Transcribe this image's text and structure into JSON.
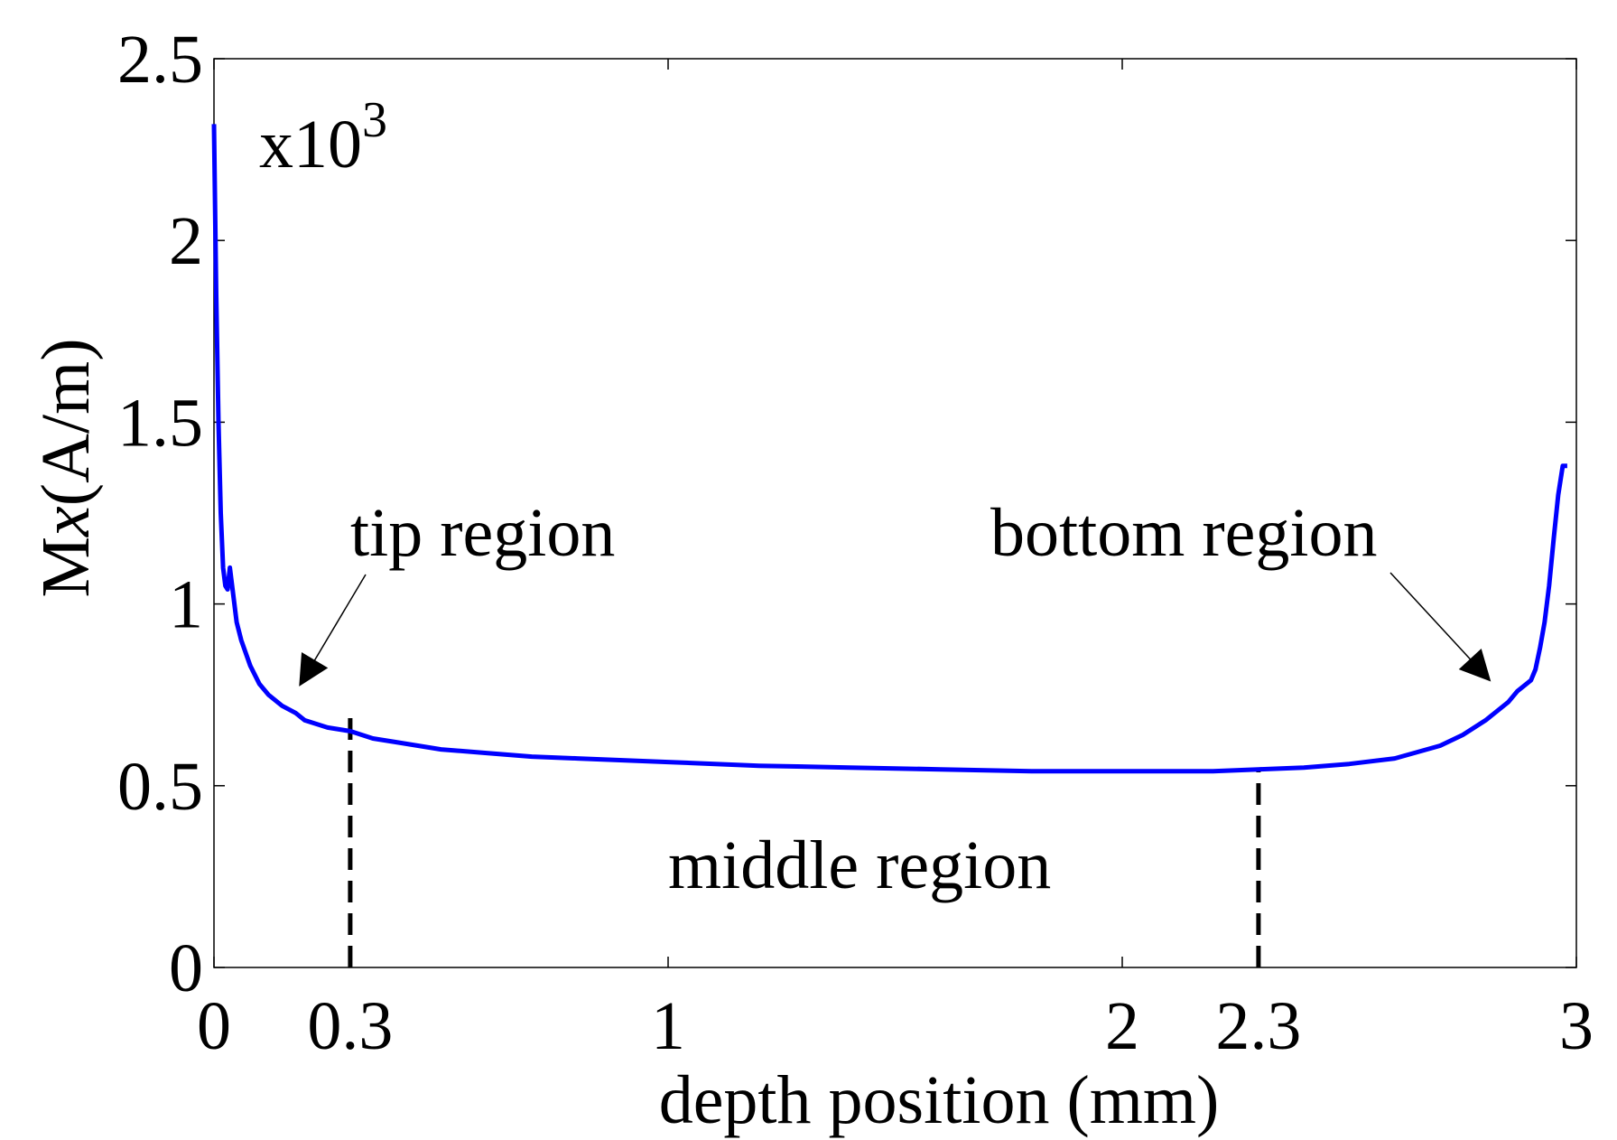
{
  "chart_data": {
    "type": "line",
    "title": "",
    "xlabel": "depth position (mm)",
    "ylabel": {
      "prefix": "M",
      "italic": "x",
      "suffix": "(A/m)"
    },
    "y_multiplier": {
      "base": "x10",
      "exponent": "3"
    },
    "xlim": [
      0,
      3
    ],
    "ylim": [
      0,
      2.5
    ],
    "x_ticks": [
      {
        "value": 0,
        "label": "0",
        "color": "#000000"
      },
      {
        "value": 0.3,
        "label": "0.3",
        "color": "#ff0000"
      },
      {
        "value": 1,
        "label": "1",
        "color": "#000000"
      },
      {
        "value": 2,
        "label": "2",
        "color": "#000000"
      },
      {
        "value": 2.3,
        "label": "2.3",
        "color": "#ff0000"
      },
      {
        "value": 3,
        "label": "3",
        "color": "#000000"
      }
    ],
    "y_ticks": [
      {
        "value": 0,
        "label": "0"
      },
      {
        "value": 0.5,
        "label": "0.5"
      },
      {
        "value": 1,
        "label": "1"
      },
      {
        "value": 1.5,
        "label": "1.5"
      },
      {
        "value": 2,
        "label": "2"
      },
      {
        "value": 2.5,
        "label": "2.5"
      }
    ],
    "grid": false,
    "legend": "none",
    "series": [
      {
        "color": "#0000ff",
        "x": [
          0.0,
          0.005,
          0.01,
          0.015,
          0.02,
          0.025,
          0.03,
          0.035,
          0.04,
          0.045,
          0.05,
          0.06,
          0.08,
          0.1,
          0.12,
          0.15,
          0.18,
          0.2,
          0.25,
          0.3,
          0.35,
          0.4,
          0.5,
          0.6,
          0.7,
          0.8,
          1.0,
          1.2,
          1.4,
          1.6,
          1.8,
          2.0,
          2.2,
          2.3,
          2.4,
          2.5,
          2.6,
          2.7,
          2.75,
          2.8,
          2.85,
          2.87,
          2.9,
          2.91,
          2.92,
          2.93,
          2.94,
          2.95,
          2.96,
          2.97,
          2.98
        ],
        "y": [
          2.32,
          1.85,
          1.5,
          1.25,
          1.1,
          1.05,
          1.04,
          1.1,
          1.05,
          1.0,
          0.95,
          0.9,
          0.83,
          0.78,
          0.75,
          0.72,
          0.7,
          0.68,
          0.66,
          0.65,
          0.63,
          0.62,
          0.6,
          0.59,
          0.58,
          0.575,
          0.565,
          0.555,
          0.55,
          0.545,
          0.54,
          0.54,
          0.54,
          0.545,
          0.55,
          0.56,
          0.575,
          0.61,
          0.64,
          0.68,
          0.73,
          0.76,
          0.79,
          0.82,
          0.88,
          0.95,
          1.05,
          1.18,
          1.3,
          1.38,
          1.38
        ]
      }
    ],
    "vlines": [
      {
        "x": 0.3,
        "y_top": 0.7,
        "style": "dashed",
        "color": "#000000"
      },
      {
        "x": 2.3,
        "y_top": 0.55,
        "style": "dashed",
        "color": "#000000"
      }
    ],
    "annotations": [
      {
        "text": "tip region",
        "arrow_to": [
          0.19,
          0.78
        ]
      },
      {
        "text": "bottom region",
        "arrow_to": [
          2.83,
          0.79
        ]
      },
      {
        "text": "middle region"
      }
    ]
  }
}
